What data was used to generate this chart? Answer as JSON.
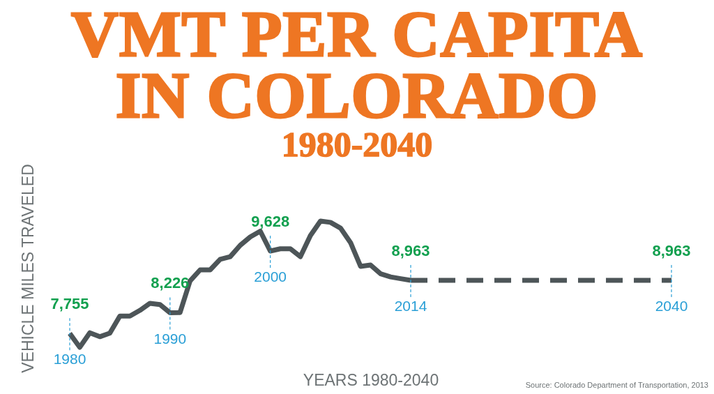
{
  "chart_data": {
    "type": "line",
    "title": "VMT PER CAPITA IN COLORADO",
    "subtitle": "1980-2040",
    "xlabel": "YEARS 1980-2040",
    "ylabel": "VEHICLE MILES TRAVELED",
    "categories": [
      "1980",
      null,
      null,
      null,
      null,
      null,
      null,
      null,
      null,
      null,
      "1990",
      null,
      null,
      null,
      null,
      null,
      null,
      null,
      null,
      null,
      "2000",
      null,
      null,
      null,
      null,
      null,
      null,
      null,
      null,
      null,
      null,
      null,
      null,
      null,
      "2014",
      null,
      null,
      null,
      null,
      null,
      null,
      null,
      null,
      null,
      null,
      null,
      null,
      null,
      null,
      null,
      null,
      null,
      null,
      null,
      null,
      null,
      null,
      null,
      null,
      null,
      "2040"
    ],
    "tick_labels": "x",
    "grid": false,
    "legend": false,
    "marker": "none",
    "series": [
      {
        "line_style": "solid",
        "color": "#4d5558",
        "values": [
          7755,
          7440,
          7770,
          7680,
          7760,
          8150,
          8150,
          8280,
          8440,
          8410,
          8226,
          8230,
          8950,
          9200,
          9200,
          9440,
          9500,
          9760,
          9950,
          10080,
          9628,
          9680,
          9680,
          9500,
          9980,
          10310,
          10280,
          10150,
          9820,
          9280,
          9310,
          9110,
          9040,
          9000,
          8963,
          null,
          null,
          null,
          null,
          null,
          null,
          null,
          null,
          null,
          null,
          null,
          null,
          null,
          null,
          null,
          null,
          null,
          null,
          null,
          null,
          null,
          null,
          null,
          null,
          null,
          null
        ],
        "value_labels": [
          "7,755",
          null,
          null,
          null,
          null,
          null,
          null,
          null,
          null,
          null,
          "8,226",
          null,
          null,
          null,
          null,
          null,
          null,
          null,
          null,
          null,
          "9,628",
          null,
          null,
          null,
          null,
          null,
          null,
          null,
          null,
          null,
          null,
          null,
          null,
          null,
          "8,963",
          null,
          null,
          null,
          null,
          null,
          null,
          null,
          null,
          null,
          null,
          null,
          null,
          null,
          null,
          null,
          null,
          null,
          null,
          null,
          null,
          null,
          null,
          null,
          null,
          null,
          null
        ]
      },
      {
        "line_style": "dashed",
        "color": "#4d5558",
        "values": [
          null,
          null,
          null,
          null,
          null,
          null,
          null,
          null,
          null,
          null,
          null,
          null,
          null,
          null,
          null,
          null,
          null,
          null,
          null,
          null,
          null,
          null,
          null,
          null,
          null,
          null,
          null,
          null,
          null,
          null,
          null,
          null,
          null,
          null,
          8963,
          null,
          null,
          null,
          null,
          null,
          null,
          null,
          null,
          null,
          null,
          null,
          null,
          null,
          null,
          null,
          null,
          null,
          null,
          null,
          null,
          null,
          null,
          null,
          null,
          null,
          8963
        ],
        "value_labels": [
          null,
          null,
          null,
          null,
          null,
          null,
          null,
          null,
          null,
          null,
          null,
          null,
          null,
          null,
          null,
          null,
          null,
          null,
          null,
          null,
          null,
          null,
          null,
          null,
          null,
          null,
          null,
          null,
          null,
          null,
          null,
          null,
          null,
          null,
          null,
          null,
          null,
          null,
          null,
          null,
          null,
          null,
          null,
          null,
          null,
          null,
          null,
          null,
          null,
          null,
          null,
          null,
          null,
          null,
          null,
          null,
          null,
          null,
          null,
          null,
          "8,963"
        ]
      }
    ],
    "ref_lines": [
      {
        "axis": "x",
        "value": "1980",
        "color": "#2a9fd6",
        "line_style": "dashed"
      },
      {
        "axis": "x",
        "value": "1990",
        "color": "#2a9fd6",
        "line_style": "dashed"
      },
      {
        "axis": "x",
        "value": "2000",
        "color": "#2a9fd6",
        "line_style": "dashed"
      },
      {
        "axis": "x",
        "value": "2014",
        "color": "#2a9fd6",
        "line_style": "dashed"
      },
      {
        "axis": "x",
        "value": "2040",
        "color": "#2a9fd6",
        "line_style": "dashed"
      }
    ],
    "annotations": [
      "Source: Colorado Department of Transportation, 2013"
    ]
  }
}
